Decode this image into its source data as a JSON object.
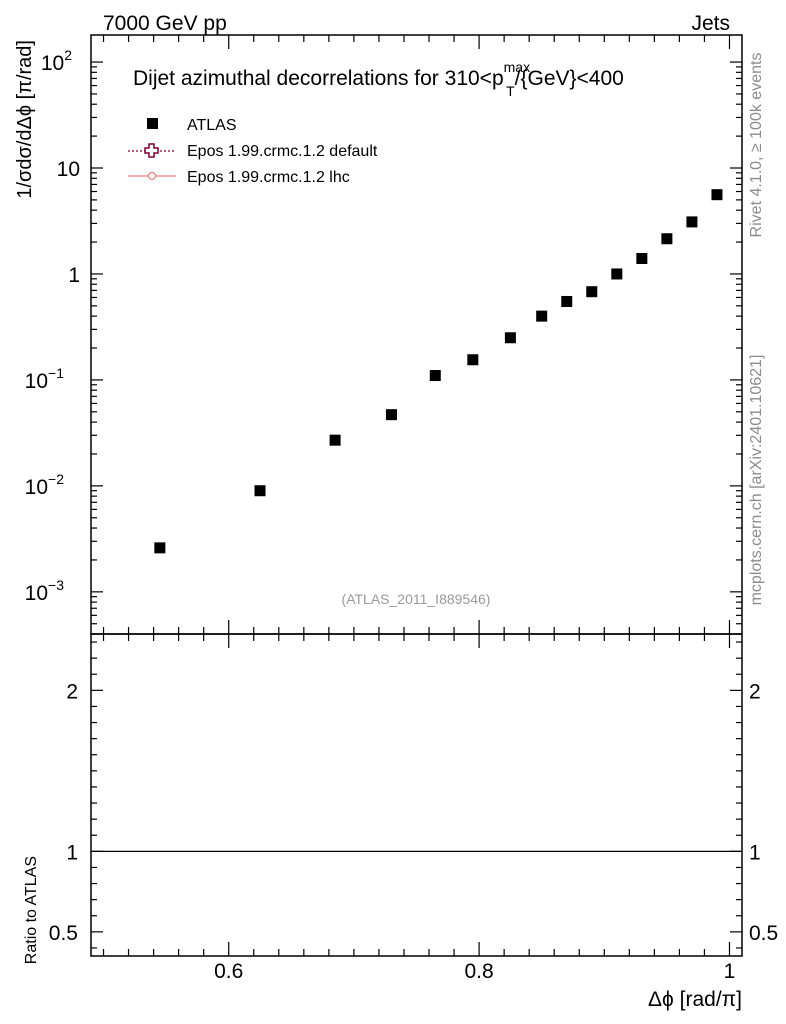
{
  "header": {
    "left": "7000 GeV pp",
    "right": "Jets"
  },
  "side_labels": {
    "rivet": "Rivet 4.1.0, ≥ 100k events",
    "mcplots": "mcplots.cern.ch [arXiv:2401.10621]"
  },
  "chart_data": {
    "type": "scatter",
    "title_main": "Dijet azimuthal decorrelations for 310<p",
    "title_sup": "max",
    "title_sub": "T",
    "title_tail": "/{GeV}<400",
    "ylabel": "1/σdσ/dΔϕ [π/rad]",
    "xlabel": "Δϕ [rad/π]",
    "ratio_ylabel": "Ratio to ATLAS",
    "watermark": "(ATLAS_2011_I889546)",
    "y_scale": "log",
    "xlim": [
      0.49,
      1.01
    ],
    "ylim": [
      0.0004,
      180
    ],
    "ratio_ylim": [
      0.35,
      2.35
    ],
    "x_ticks": [
      {
        "value": 0.6,
        "label": "0.6"
      },
      {
        "value": 0.8,
        "label": "0.8"
      },
      {
        "value": 1.0,
        "label": "1"
      }
    ],
    "y_ticks": [
      {
        "value": 0.001,
        "base": "10",
        "exp": "−3"
      },
      {
        "value": 0.01,
        "base": "10",
        "exp": "−2"
      },
      {
        "value": 0.1,
        "base": "10",
        "exp": "−1"
      },
      {
        "value": 1,
        "base": "1",
        "exp": ""
      },
      {
        "value": 10,
        "base": "10",
        "exp": ""
      },
      {
        "value": 100,
        "base": "10",
        "exp": "2"
      }
    ],
    "ratio_ticks": [
      {
        "value": 0.5,
        "label": "0.5"
      },
      {
        "value": 1,
        "label": "1"
      },
      {
        "value": 2,
        "label": "2"
      }
    ],
    "legend": [
      {
        "name": "ATLAS",
        "style": "data",
        "color": "#000000"
      },
      {
        "name": "Epos 1.99.crmc.1.2 default",
        "style": "dotted",
        "color": "#800033"
      },
      {
        "name": "Epos 1.99.crmc.1.2 lhc",
        "style": "solid",
        "color": "#f08080"
      }
    ],
    "series": [
      {
        "name": "ATLAS",
        "x": [
          0.545,
          0.625,
          0.685,
          0.73,
          0.765,
          0.795,
          0.825,
          0.85,
          0.87,
          0.89,
          0.91,
          0.93,
          0.95,
          0.97,
          0.99
        ],
        "y": [
          0.0026,
          0.009,
          0.027,
          0.047,
          0.11,
          0.155,
          0.25,
          0.4,
          0.55,
          0.68,
          1.0,
          1.4,
          2.15,
          3.1,
          5.6
        ]
      }
    ],
    "ratio_reference": 1
  }
}
